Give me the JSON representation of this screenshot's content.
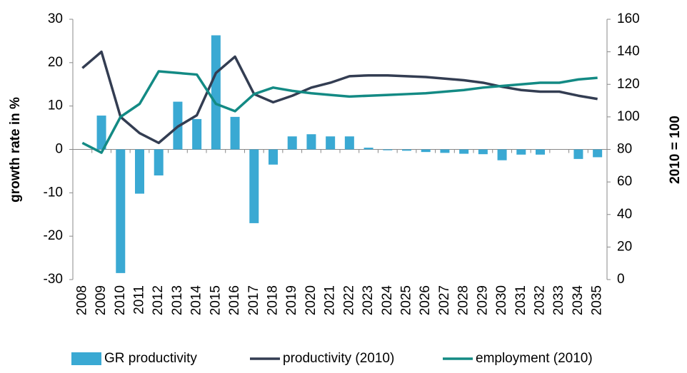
{
  "chart_data": {
    "type": "bar_line",
    "y_label": "growth rate in %",
    "y2_label": "2010 = 100",
    "categories": [
      "2008",
      "2009",
      "2010",
      "2011",
      "2012",
      "2013",
      "2014",
      "2015",
      "2016",
      "2017",
      "2018",
      "2019",
      "2020",
      "2021",
      "2022",
      "2023",
      "2024",
      "2025",
      "2026",
      "2027",
      "2028",
      "2029",
      "2030",
      "2031",
      "2032",
      "2033",
      "2034",
      "2035"
    ],
    "series": [
      {
        "name": "GR productivity",
        "color": "#3aa9d3",
        "kind": "bar",
        "axis": "y",
        "values": [
          0,
          7.8,
          -28.5,
          -10.2,
          -6,
          11,
          7,
          26.3,
          7.5,
          -17,
          -3.5,
          3,
          3.5,
          3,
          3,
          0.4,
          -0.2,
          -0.3,
          -0.6,
          -0.8,
          -1,
          -1.1,
          -2.5,
          -1.2,
          -1.2,
          0,
          -2.2,
          -1.8
        ]
      },
      {
        "name": "productivity (2010)",
        "color": "#333d52",
        "kind": "line",
        "axis": "y2",
        "values": [
          130,
          140,
          100,
          90,
          84,
          94,
          101,
          127,
          137,
          114,
          109,
          113,
          118,
          121,
          125,
          125.5,
          125.5,
          125,
          124.5,
          123.5,
          122.5,
          121,
          118.5,
          116.5,
          115.5,
          115.5,
          113,
          111
        ]
      },
      {
        "name": "employment (2010)",
        "color": "#138a84",
        "kind": "line",
        "axis": "y2",
        "values": [
          84,
          78,
          100,
          108,
          128,
          127,
          126,
          108,
          103.5,
          114,
          118,
          116,
          114.5,
          113.5,
          112.5,
          113,
          113.5,
          114,
          114.5,
          115.5,
          116.5,
          118,
          119,
          120,
          121,
          121,
          123,
          124
        ]
      }
    ],
    "ylim": [
      -30,
      30
    ],
    "yticks": [
      -30,
      -20,
      -10,
      0,
      10,
      20,
      30
    ],
    "y2lim": [
      0,
      160
    ],
    "y2ticks": [
      0,
      20,
      40,
      60,
      80,
      100,
      120,
      140,
      160
    ],
    "legend": "bottom"
  }
}
